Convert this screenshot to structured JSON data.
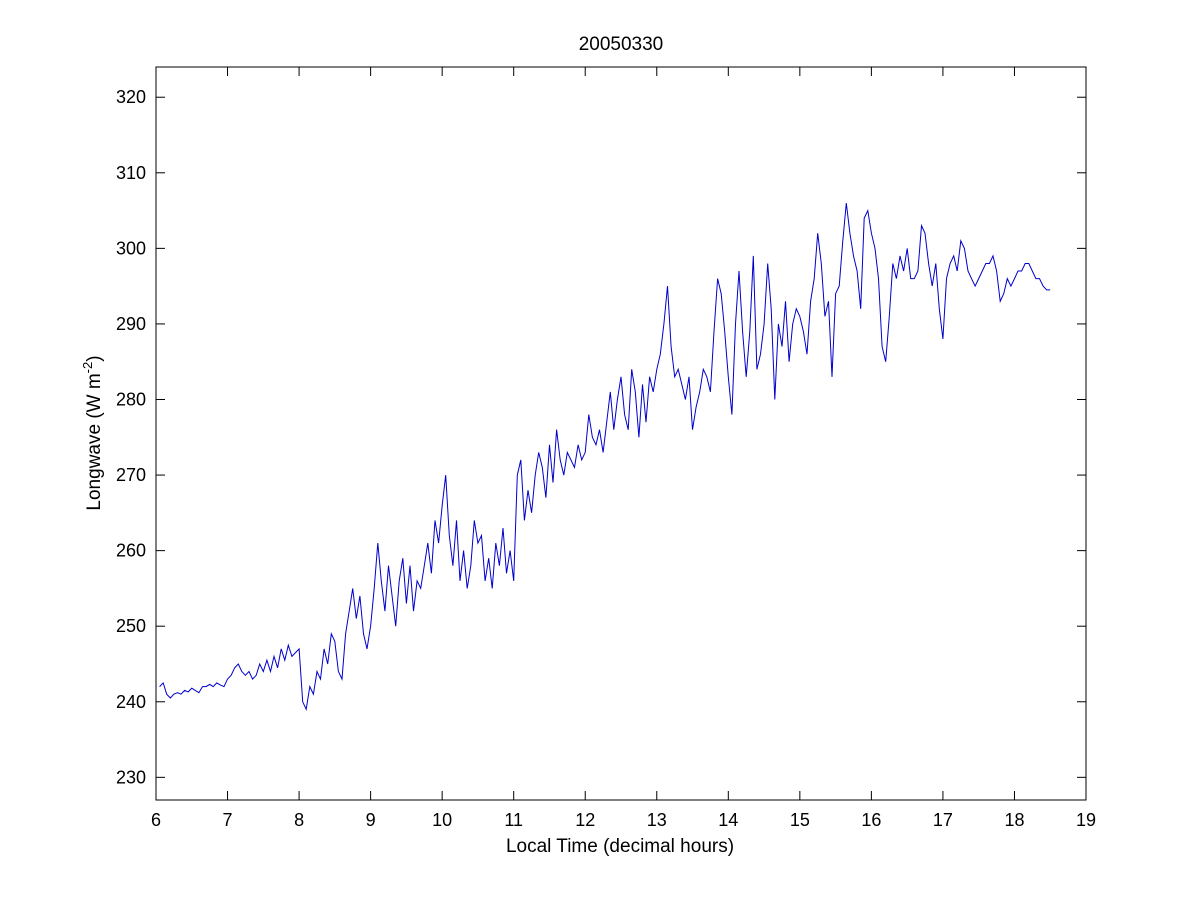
{
  "chart_data": {
    "type": "line",
    "title": "20050330",
    "xlabel": "Local Time (decimal hours)",
    "ylabel": {
      "main": "Longwave (W m",
      "superscript": "-2",
      "close": ")"
    },
    "xlim": [
      6,
      19
    ],
    "ylim": [
      227,
      324
    ],
    "xticks": [
      6,
      7,
      8,
      9,
      10,
      11,
      12,
      13,
      14,
      15,
      16,
      17,
      18,
      19
    ],
    "yticks": [
      230,
      240,
      250,
      260,
      270,
      280,
      290,
      300,
      310,
      320
    ],
    "grid": false,
    "line_color": "#0000cc",
    "series": [
      {
        "x": [
          6.05,
          6.1,
          6.15,
          6.2,
          6.25,
          6.3,
          6.35,
          6.4,
          6.45,
          6.5,
          6.55,
          6.6,
          6.65,
          6.7,
          6.75,
          6.8,
          6.85,
          6.9,
          6.95,
          7.0,
          7.05,
          7.1,
          7.15,
          7.2,
          7.25,
          7.3,
          7.35,
          7.4,
          7.45,
          7.5,
          7.55,
          7.6,
          7.65,
          7.7,
          7.75,
          7.8,
          7.85,
          7.9,
          7.95,
          8.0,
          8.05,
          8.1,
          8.15,
          8.2,
          8.25,
          8.3,
          8.35,
          8.4,
          8.45,
          8.5,
          8.55,
          8.6,
          8.65,
          8.7,
          8.75,
          8.8,
          8.85,
          8.9,
          8.95,
          9.0,
          9.05,
          9.1,
          9.15,
          9.2,
          9.25,
          9.3,
          9.35,
          9.4,
          9.45,
          9.5,
          9.55,
          9.6,
          9.65,
          9.7,
          9.75,
          9.8,
          9.85,
          9.9,
          9.95,
          10.0,
          10.05,
          10.1,
          10.15,
          10.2,
          10.25,
          10.3,
          10.35,
          10.4,
          10.45,
          10.5,
          10.55,
          10.6,
          10.65,
          10.7,
          10.75,
          10.8,
          10.85,
          10.9,
          10.95,
          11.0,
          11.05,
          11.1,
          11.15,
          11.2,
          11.25,
          11.3,
          11.35,
          11.4,
          11.45,
          11.5,
          11.55,
          11.6,
          11.65,
          11.7,
          11.75,
          11.8,
          11.85,
          11.9,
          11.95,
          12.0,
          12.05,
          12.1,
          12.15,
          12.2,
          12.25,
          12.3,
          12.35,
          12.4,
          12.45,
          12.5,
          12.55,
          12.6,
          12.65,
          12.7,
          12.75,
          12.8,
          12.85,
          12.9,
          12.95,
          13.0,
          13.05,
          13.1,
          13.15,
          13.2,
          13.25,
          13.3,
          13.35,
          13.4,
          13.45,
          13.5,
          13.55,
          13.6,
          13.65,
          13.7,
          13.75,
          13.8,
          13.85,
          13.9,
          13.95,
          14.0,
          14.05,
          14.1,
          14.15,
          14.2,
          14.25,
          14.3,
          14.35,
          14.4,
          14.45,
          14.5,
          14.55,
          14.6,
          14.65,
          14.7,
          14.75,
          14.8,
          14.85,
          14.9,
          14.95,
          15.0,
          15.05,
          15.1,
          15.15,
          15.2,
          15.25,
          15.3,
          15.35,
          15.4,
          15.45,
          15.5,
          15.55,
          15.6,
          15.65,
          15.7,
          15.75,
          15.8,
          15.85,
          15.9,
          15.95,
          16.0,
          16.05,
          16.1,
          16.15,
          16.2,
          16.25,
          16.3,
          16.35,
          16.4,
          16.45,
          16.5,
          16.55,
          16.6,
          16.65,
          16.7,
          16.75,
          16.8,
          16.85,
          16.9,
          16.95,
          17.0,
          17.05,
          17.1,
          17.15,
          17.2,
          17.25,
          17.3,
          17.35,
          17.4,
          17.45,
          17.5,
          17.55,
          17.6,
          17.65,
          17.7,
          17.75,
          17.8,
          17.85,
          17.9,
          17.95,
          18.0,
          18.05,
          18.1,
          18.15,
          18.2,
          18.25,
          18.3,
          18.35,
          18.4,
          18.45,
          18.5
        ],
        "y": [
          242,
          242.5,
          241,
          240.5,
          241,
          241.2,
          241,
          241.5,
          241.3,
          241.8,
          241.5,
          241.2,
          242,
          242,
          242.3,
          242,
          242.5,
          242.2,
          242,
          243,
          243.5,
          244.5,
          245,
          244,
          243.5,
          244,
          243,
          243.5,
          245,
          244,
          245.5,
          244,
          246,
          244.5,
          247,
          245.5,
          247.5,
          246,
          246.5,
          247,
          240,
          239,
          242,
          241,
          244,
          243,
          247,
          245,
          249,
          248,
          244,
          243,
          249,
          252,
          255,
          251,
          254,
          249,
          247,
          250,
          255,
          261,
          256,
          252,
          258,
          254,
          250,
          256,
          259,
          253,
          258,
          252,
          256,
          255,
          258,
          261,
          257,
          264,
          261,
          266,
          270,
          262,
          258,
          264,
          256,
          260,
          255,
          258,
          264,
          261,
          262,
          256,
          259,
          255,
          261,
          258,
          263,
          257,
          260,
          256,
          270,
          272,
          264,
          268,
          265,
          270,
          273,
          271,
          267,
          274,
          269,
          276,
          272,
          270,
          273,
          272,
          271,
          274,
          272,
          273,
          278,
          275,
          274,
          276,
          273,
          277,
          281,
          276,
          280,
          283,
          278,
          276,
          284,
          281,
          275,
          282,
          277,
          283,
          281,
          284,
          286,
          290,
          295,
          287,
          283,
          284,
          282,
          280,
          283,
          276,
          279,
          281,
          284,
          283,
          281,
          289,
          296,
          294,
          289,
          283,
          278,
          290,
          297,
          289,
          283,
          289,
          299,
          284,
          286,
          290,
          298,
          292,
          280,
          290,
          287,
          293,
          285,
          290,
          292,
          291,
          289,
          286,
          293,
          296,
          302,
          298,
          291,
          293,
          283,
          294,
          295,
          301,
          306,
          302,
          299,
          297,
          292,
          304,
          305,
          302,
          300,
          296,
          287,
          285,
          291,
          298,
          296,
          299,
          297,
          300,
          296,
          296,
          297,
          303,
          302,
          298,
          295,
          298,
          292,
          288,
          296,
          298,
          299,
          297,
          301,
          300,
          297,
          296,
          295,
          296,
          297,
          298,
          298,
          299,
          297,
          293,
          294,
          296,
          295,
          296,
          297,
          297,
          298,
          298,
          297,
          296,
          296,
          295,
          294.5,
          294.5
        ]
      }
    ]
  }
}
